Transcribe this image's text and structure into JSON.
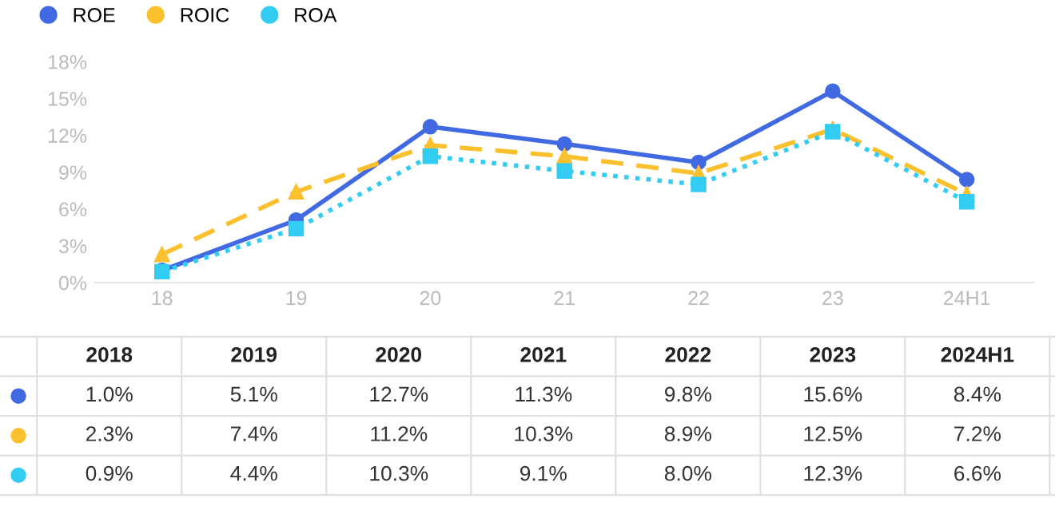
{
  "chart_data": {
    "type": "line",
    "categories": [
      "18",
      "19",
      "20",
      "21",
      "22",
      "23",
      "24H1"
    ],
    "series": [
      {
        "name": "ROE",
        "color": "#4169e1",
        "marker": "circle",
        "line_style": "solid",
        "values": [
          1.0,
          5.1,
          12.7,
          11.3,
          9.8,
          15.6,
          8.4
        ],
        "value_labels": [
          "1.0%",
          "5.1%",
          "12.7%",
          "11.3%",
          "9.8%",
          "15.6%",
          "8.4%"
        ]
      },
      {
        "name": "ROIC",
        "color": "#fbc02d",
        "marker": "triangle",
        "line_style": "dashed",
        "values": [
          2.3,
          7.4,
          11.2,
          10.3,
          8.9,
          12.5,
          7.2
        ],
        "value_labels": [
          "2.3%",
          "7.4%",
          "11.2%",
          "10.3%",
          "8.9%",
          "12.5%",
          "7.2%"
        ]
      },
      {
        "name": "ROA",
        "color": "#33ccf2",
        "marker": "square",
        "line_style": "dotted",
        "values": [
          0.9,
          4.4,
          10.3,
          9.1,
          8.0,
          12.3,
          6.6
        ],
        "value_labels": [
          "0.9%",
          "4.4%",
          "10.3%",
          "9.1%",
          "8.0%",
          "12.3%",
          "6.6%"
        ]
      }
    ],
    "ylim": [
      0,
      18
    ],
    "yticks": [
      {
        "value": 0,
        "label": "0%"
      },
      {
        "value": 3,
        "label": "3%"
      },
      {
        "value": 6,
        "label": "6%"
      },
      {
        "value": 9,
        "label": "9%"
      },
      {
        "value": 12,
        "label": "12%"
      },
      {
        "value": 15,
        "label": "15%"
      },
      {
        "value": 18,
        "label": "18%"
      }
    ],
    "annotations": [
      "2018",
      "2019",
      "2020",
      "2021",
      "2022",
      "2023",
      "2024H1"
    ],
    "legend": "top left",
    "grid": false
  }
}
